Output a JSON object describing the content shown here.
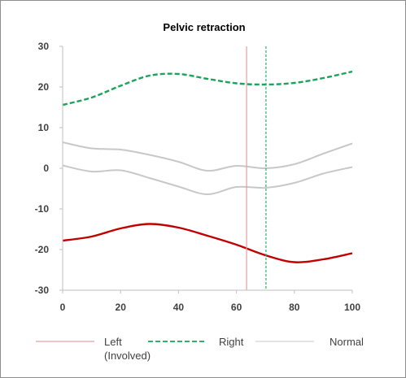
{
  "chart_data": {
    "type": "line",
    "title": "Pelvic retraction",
    "xlabel": "",
    "ylabel": "",
    "xlim": [
      0,
      100
    ],
    "ylim": [
      -30,
      30
    ],
    "x_ticks": [
      0,
      20,
      40,
      60,
      80,
      100
    ],
    "y_ticks": [
      30,
      20,
      10,
      0,
      -10,
      -20,
      -30
    ],
    "grid": false,
    "legend_position": "bottom",
    "series": [
      {
        "name": "Left (Involved)",
        "legend_lines": [
          "Left",
          "(Involved)"
        ],
        "color": "#c00000",
        "style": "solid",
        "points": [
          [
            0,
            -17.8
          ],
          [
            10,
            -16.8
          ],
          [
            20,
            -14.8
          ],
          [
            30,
            -13.7
          ],
          [
            40,
            -14.6
          ],
          [
            50,
            -16.6
          ],
          [
            60,
            -18.8
          ],
          [
            70,
            -21.4
          ],
          [
            80,
            -23.1
          ],
          [
            90,
            -22.4
          ],
          [
            100,
            -20.9
          ]
        ]
      },
      {
        "name": "Right",
        "legend_lines": [
          "Right"
        ],
        "color": "#1aa35a",
        "style": "dashed",
        "points": [
          [
            0,
            15.6
          ],
          [
            10,
            17.4
          ],
          [
            20,
            20.3
          ],
          [
            30,
            22.8
          ],
          [
            40,
            23.2
          ],
          [
            50,
            22.0
          ],
          [
            60,
            20.9
          ],
          [
            70,
            20.6
          ],
          [
            80,
            21.0
          ],
          [
            90,
            22.2
          ],
          [
            100,
            23.8
          ]
        ]
      },
      {
        "name": "Normal",
        "legend_lines": [
          "Normal"
        ],
        "color": "#c8c8c8",
        "style": "solid",
        "band_upper": [
          [
            0,
            6.4
          ],
          [
            10,
            4.9
          ],
          [
            20,
            4.6
          ],
          [
            30,
            3.3
          ],
          [
            40,
            1.6
          ],
          [
            50,
            -0.6
          ],
          [
            60,
            0.6
          ],
          [
            70,
            0.0
          ],
          [
            80,
            1.0
          ],
          [
            90,
            3.6
          ],
          [
            100,
            6.1
          ]
        ],
        "band_lower": [
          [
            0,
            0.7
          ],
          [
            10,
            -0.8
          ],
          [
            20,
            -0.5
          ],
          [
            30,
            -2.4
          ],
          [
            40,
            -4.5
          ],
          [
            50,
            -6.4
          ],
          [
            60,
            -4.6
          ],
          [
            70,
            -4.8
          ],
          [
            80,
            -3.6
          ],
          [
            90,
            -1.3
          ],
          [
            100,
            0.3
          ]
        ]
      }
    ],
    "vertical_lines": [
      {
        "x": 63.5,
        "color": "#e3a0a0",
        "style": "solid",
        "series": "Left (Involved)"
      },
      {
        "x": 70.2,
        "color": "#2fb36b",
        "style": "dashed",
        "series": "Right"
      }
    ]
  }
}
